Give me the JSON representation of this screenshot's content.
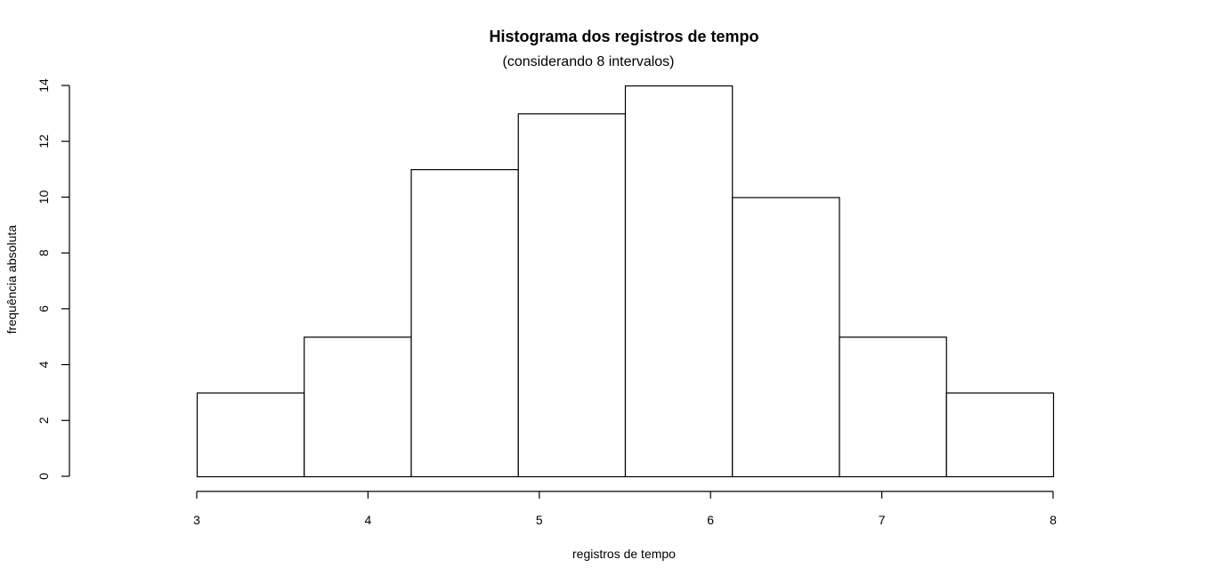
{
  "chart_data": {
    "type": "bar",
    "title": "Histograma dos registros de tempo",
    "subtitle": "(considerando 8 intervalos)",
    "xlabel": "registros de tempo",
    "ylabel": "frequência absoluta",
    "bins": [
      {
        "from": 3.0,
        "to": 3.625,
        "count": 3
      },
      {
        "from": 3.625,
        "to": 4.25,
        "count": 5
      },
      {
        "from": 4.25,
        "to": 4.875,
        "count": 11
      },
      {
        "from": 4.875,
        "to": 5.5,
        "count": 13
      },
      {
        "from": 5.5,
        "to": 6.125,
        "count": 14
      },
      {
        "from": 6.125,
        "to": 6.75,
        "count": 10
      },
      {
        "from": 6.75,
        "to": 7.375,
        "count": 5
      },
      {
        "from": 7.375,
        "to": 8.0,
        "count": 3
      }
    ],
    "xlim": [
      3,
      8
    ],
    "ylim": [
      0,
      14
    ],
    "x_ticks": [
      3,
      4,
      5,
      6,
      7,
      8
    ],
    "y_ticks": [
      0,
      2,
      4,
      6,
      8,
      10,
      12,
      14
    ],
    "grid": false,
    "legend": "none",
    "bar_fill": "#ffffff",
    "bar_stroke": "#000000"
  }
}
